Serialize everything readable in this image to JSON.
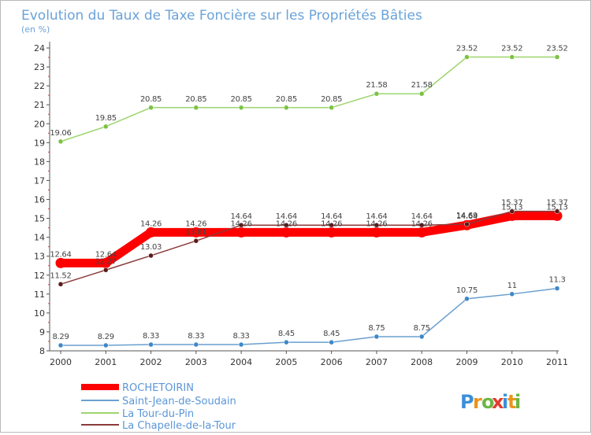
{
  "chart_data": {
    "type": "line",
    "title": "Evolution du Taux de Taxe Foncière sur les Propriétés Bâties",
    "subtitle": "(en %)",
    "x": [
      "2000",
      "2001",
      "2002",
      "2003",
      "2004",
      "2005",
      "2006",
      "2007",
      "2008",
      "2009",
      "2010",
      "2011"
    ],
    "ylim": [
      8,
      24
    ],
    "yticks": [
      "8",
      "9",
      "10",
      "11",
      "12",
      "13",
      "14",
      "15",
      "16",
      "17",
      "18",
      "19",
      "20",
      "21",
      "22",
      "23",
      "24"
    ],
    "grid": false,
    "legend_position": "bottom-left",
    "series": [
      {
        "name": "ROCHETOIRIN",
        "color": "#ff0000",
        "emphasis": true,
        "values": [
          12.64,
          12.64,
          14.26,
          14.26,
          14.26,
          14.26,
          14.26,
          14.26,
          14.26,
          14.64,
          15.13,
          15.13
        ],
        "labels": [
          "12.64",
          "12.64",
          "14.26",
          "14.26",
          "14.26",
          "14.26",
          "14.26",
          "14.26",
          "14.26",
          "14.64",
          "15.13",
          "15.13"
        ]
      },
      {
        "name": "Saint-Jean-de-Soudain",
        "color": "#6a9fcf",
        "marker": "#3e88c7",
        "values": [
          8.29,
          8.29,
          8.33,
          8.33,
          8.33,
          8.45,
          8.45,
          8.75,
          8.75,
          10.75,
          11,
          11.3
        ],
        "labels": [
          "8.29",
          "8.29",
          "8.33",
          "8.33",
          "8.33",
          "8.45",
          "8.45",
          "8.75",
          "8.75",
          "10.75",
          "11",
          "11.3"
        ]
      },
      {
        "name": "La Tour-du-Pin",
        "color": "#9ed56f",
        "marker": "#7cc242",
        "values": [
          19.06,
          19.85,
          20.85,
          20.85,
          20.85,
          20.85,
          20.85,
          21.58,
          21.58,
          23.52,
          23.52,
          23.52
        ],
        "labels": [
          "19.06",
          "19.85",
          "20.85",
          "20.85",
          "20.85",
          "20.85",
          "20.85",
          "21.58",
          "21.58",
          "23.52",
          "23.52",
          "23.52"
        ]
      },
      {
        "name": "La Chapelle-de-la-Tour",
        "color": "#8b3a3a",
        "marker": "#5a1a1a",
        "values": [
          11.52,
          12.27,
          13.03,
          13.81,
          14.64,
          14.64,
          14.64,
          14.64,
          14.64,
          14.69,
          15.37,
          15.37
        ],
        "labels": [
          "11.52",
          "12.27",
          "13.03",
          "13.81",
          "14.64",
          "14.64",
          "14.64",
          "14.64",
          "14.64",
          "14.69",
          "15.37",
          "15.37"
        ]
      }
    ]
  },
  "logo": {
    "text": "Proxiti",
    "letters": [
      "P",
      "r",
      "o",
      "x",
      "i",
      "t",
      "i"
    ],
    "colors": [
      "#3b8fd9",
      "#e8951d",
      "#6bb644",
      "#e23c2e",
      "#3b8fd9",
      "#e8951d",
      "#6bb644"
    ]
  }
}
